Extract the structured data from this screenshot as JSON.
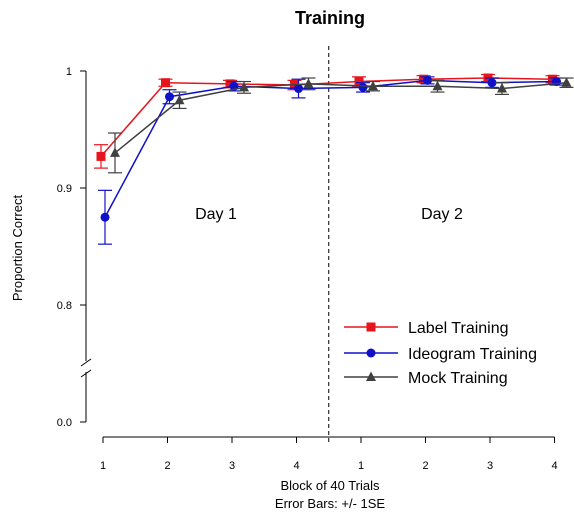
{
  "chart_data": {
    "type": "line",
    "title": "Training",
    "ylabel": "Proportion Correct",
    "xlabel": "Block of 40 Trials",
    "xlabel_sub": "Error Bars: +/- 1SE",
    "x_tick_labels": [
      "1",
      "2",
      "3",
      "4",
      "1",
      "2",
      "3",
      "4"
    ],
    "y_ticks": [
      {
        "value": 1.0,
        "label": "1"
      },
      {
        "value": 0.9,
        "label": "0.9"
      },
      {
        "value": 0.8,
        "label": "0.8"
      },
      {
        "value": 0.0,
        "label": "0.0"
      }
    ],
    "y_axis_break": true,
    "day_labels": [
      "Day 1",
      "Day 2"
    ],
    "legend_position": "bottom-right",
    "series": [
      {
        "name": "Label Training",
        "color": "#e8141c",
        "marker": "square",
        "values": [
          0.927,
          0.99,
          0.989,
          0.988,
          0.991,
          0.993,
          0.994,
          0.993
        ],
        "se": [
          0.01,
          0.003,
          0.003,
          0.004,
          0.004,
          0.003,
          0.003,
          0.003
        ]
      },
      {
        "name": "Ideogram Training",
        "color": "#1010c8",
        "marker": "circle",
        "values": [
          0.875,
          0.978,
          0.987,
          0.985,
          0.986,
          0.992,
          0.99,
          0.991
        ],
        "se": [
          0.023,
          0.006,
          0.004,
          0.008,
          0.004,
          0.003,
          0.004,
          0.003
        ]
      },
      {
        "name": "Mock Training",
        "color": "#404040",
        "marker": "triangle",
        "values": [
          0.93,
          0.975,
          0.986,
          0.989,
          0.987,
          0.987,
          0.985,
          0.99
        ],
        "se": [
          0.017,
          0.007,
          0.005,
          0.005,
          0.004,
          0.005,
          0.005,
          0.004
        ]
      }
    ]
  }
}
